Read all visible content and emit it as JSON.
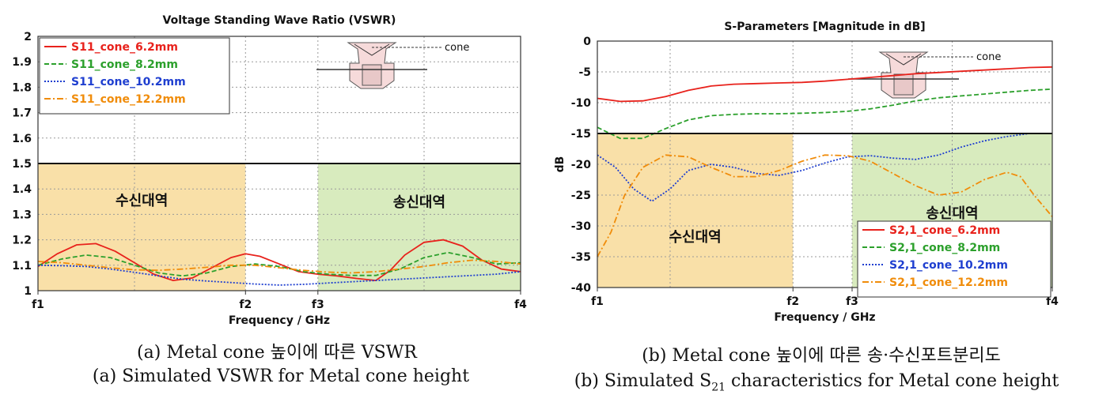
{
  "captions": {
    "a_ko": "(a) Metal cone 높이에 따른 VSWR",
    "a_en": "(a) Simulated VSWR for Metal cone height",
    "b_ko": "(b) Metal cone 높이에 따른 송·수신포트분리도",
    "b_en_pre": "(b) Simulated S",
    "b_en_sub": "21",
    "b_en_post": " characteristics for Metal cone height"
  },
  "chart_data": [
    {
      "type": "line",
      "title": "Voltage Standing Wave Ratio (VSWR)",
      "xlabel": "Frequency / GHz",
      "ylabel": "",
      "x_ticks": [
        "f1",
        "f2",
        "f3",
        "f4"
      ],
      "x_tick_positions": [
        0,
        0.43,
        0.58,
        1.0
      ],
      "xlim": [
        0,
        1
      ],
      "ylim": [
        1,
        2
      ],
      "y_ticks": [
        1,
        1.1,
        1.2,
        1.3,
        1.4,
        1.5,
        1.6,
        1.7,
        1.8,
        1.9,
        2
      ],
      "y_tick_labels": [
        "1",
        "1.1",
        "1.2",
        "1.3",
        "1.4",
        "1.5",
        "1.6",
        "1.7",
        "1.8",
        "1.9",
        "2"
      ],
      "grid": true,
      "legend_position": "top-left",
      "reference_line": 1.5,
      "bands": [
        {
          "label": "수신대역",
          "x0": 0,
          "x1": 0.43,
          "color": "#f9e0a8"
        },
        {
          "label": "송신대역",
          "x0": 0.58,
          "x1": 1.0,
          "color": "#d8ebbe"
        }
      ],
      "inset_label": "cone",
      "series": [
        {
          "name": "S11_cone_6.2mm",
          "color": "#e8221c",
          "dash": "solid",
          "x": [
            0,
            0.04,
            0.08,
            0.12,
            0.16,
            0.2,
            0.24,
            0.28,
            0.32,
            0.36,
            0.4,
            0.43,
            0.46,
            0.5,
            0.54,
            0.58,
            0.62,
            0.66,
            0.7,
            0.73,
            0.76,
            0.8,
            0.84,
            0.88,
            0.92,
            0.96,
            1.0
          ],
          "y": [
            1.095,
            1.145,
            1.18,
            1.185,
            1.155,
            1.11,
            1.065,
            1.04,
            1.05,
            1.09,
            1.13,
            1.145,
            1.135,
            1.105,
            1.075,
            1.065,
            1.058,
            1.048,
            1.04,
            1.08,
            1.14,
            1.19,
            1.2,
            1.175,
            1.12,
            1.085,
            1.075
          ]
        },
        {
          "name": "S11_cone_8.2mm",
          "color": "#2ca02c",
          "dash": "6,3",
          "x": [
            0,
            0.05,
            0.1,
            0.15,
            0.2,
            0.25,
            0.3,
            0.35,
            0.4,
            0.45,
            0.5,
            0.55,
            0.6,
            0.65,
            0.7,
            0.75,
            0.8,
            0.85,
            0.9,
            0.95,
            1.0
          ],
          "y": [
            1.1,
            1.125,
            1.14,
            1.13,
            1.1,
            1.07,
            1.058,
            1.07,
            1.095,
            1.105,
            1.095,
            1.075,
            1.065,
            1.06,
            1.06,
            1.085,
            1.13,
            1.15,
            1.13,
            1.105,
            1.11
          ]
        },
        {
          "name": "S11_cone_10.2mm",
          "color": "#1f3fd0",
          "dash": "2,2",
          "x": [
            0,
            0.05,
            0.1,
            0.15,
            0.2,
            0.25,
            0.3,
            0.35,
            0.4,
            0.45,
            0.5,
            0.55,
            0.6,
            0.65,
            0.7,
            0.75,
            0.8,
            0.85,
            0.9,
            0.95,
            1.0
          ],
          "y": [
            1.1,
            1.098,
            1.095,
            1.085,
            1.072,
            1.058,
            1.045,
            1.038,
            1.032,
            1.026,
            1.022,
            1.025,
            1.03,
            1.035,
            1.04,
            1.045,
            1.05,
            1.055,
            1.06,
            1.065,
            1.075
          ]
        },
        {
          "name": "S11_cone_12.2mm",
          "color": "#f08c0a",
          "dash": "8,3,2,3",
          "x": [
            0,
            0.05,
            0.1,
            0.15,
            0.2,
            0.25,
            0.3,
            0.35,
            0.4,
            0.45,
            0.5,
            0.55,
            0.6,
            0.65,
            0.7,
            0.75,
            0.8,
            0.85,
            0.9,
            0.95,
            1.0
          ],
          "y": [
            1.115,
            1.11,
            1.1,
            1.09,
            1.082,
            1.08,
            1.085,
            1.092,
            1.1,
            1.1,
            1.09,
            1.08,
            1.073,
            1.07,
            1.075,
            1.085,
            1.095,
            1.11,
            1.12,
            1.115,
            1.105
          ]
        }
      ]
    },
    {
      "type": "line",
      "title": "S-Parameters [Magnitude in dB]",
      "xlabel": "Frequency / GHz",
      "ylabel": "dB",
      "x_ticks": [
        "f1",
        "f2",
        "f3",
        "f4"
      ],
      "x_tick_positions": [
        0,
        0.43,
        0.56,
        1.0
      ],
      "xlim": [
        0,
        1
      ],
      "ylim": [
        -40,
        0
      ],
      "y_ticks": [
        0,
        -5,
        -10,
        -15,
        -20,
        -25,
        -30,
        -35,
        -40
      ],
      "y_tick_labels": [
        "0",
        "-5",
        "-10",
        "-15",
        "-20",
        "-25",
        "-30",
        "-35",
        "-40"
      ],
      "grid": true,
      "legend_position": "bottom-right",
      "reference_line": -15,
      "bands": [
        {
          "label": "수신대역",
          "x0": 0,
          "x1": 0.43,
          "color": "#f9e0a8"
        },
        {
          "label": "송신대역",
          "x0": 0.56,
          "x1": 1.0,
          "color": "#d8ebbe"
        }
      ],
      "inset_label": "cone",
      "series": [
        {
          "name": "S2,1_cone_6.2mm",
          "color": "#e8221c",
          "dash": "solid",
          "x": [
            0,
            0.05,
            0.1,
            0.15,
            0.2,
            0.25,
            0.3,
            0.35,
            0.4,
            0.45,
            0.5,
            0.55,
            0.6,
            0.65,
            0.7,
            0.75,
            0.8,
            0.85,
            0.9,
            0.95,
            1.0
          ],
          "y": [
            -9.3,
            -9.8,
            -9.7,
            -9.0,
            -8.0,
            -7.3,
            -7.0,
            -6.9,
            -6.8,
            -6.7,
            -6.5,
            -6.2,
            -5.9,
            -5.6,
            -5.3,
            -5.1,
            -4.9,
            -4.7,
            -4.5,
            -4.3,
            -4.2
          ]
        },
        {
          "name": "S2,1_cone_8.2mm",
          "color": "#2ca02c",
          "dash": "6,3",
          "x": [
            0,
            0.05,
            0.1,
            0.15,
            0.2,
            0.25,
            0.3,
            0.35,
            0.4,
            0.45,
            0.5,
            0.55,
            0.6,
            0.65,
            0.7,
            0.75,
            0.8,
            0.85,
            0.9,
            0.95,
            1.0
          ],
          "y": [
            -14.0,
            -15.8,
            -15.8,
            -14.2,
            -12.8,
            -12.1,
            -11.9,
            -11.8,
            -11.8,
            -11.7,
            -11.6,
            -11.4,
            -11.0,
            -10.4,
            -9.7,
            -9.2,
            -8.9,
            -8.6,
            -8.3,
            -8.0,
            -7.8
          ]
        },
        {
          "name": "S2,1_cone_10.2mm",
          "color": "#1f3fd0",
          "dash": "2,2",
          "x": [
            0,
            0.04,
            0.08,
            0.12,
            0.16,
            0.2,
            0.25,
            0.3,
            0.35,
            0.4,
            0.45,
            0.5,
            0.55,
            0.6,
            0.65,
            0.7,
            0.75,
            0.8,
            0.85,
            0.9,
            0.95,
            1.0
          ],
          "y": [
            -18.5,
            -20.5,
            -24.0,
            -26.0,
            -24.0,
            -21.0,
            -20.0,
            -20.5,
            -21.5,
            -21.8,
            -21.0,
            -19.8,
            -18.8,
            -18.6,
            -19.0,
            -19.2,
            -18.5,
            -17.2,
            -16.2,
            -15.5,
            -15.0,
            -15.0
          ]
        },
        {
          "name": "S2,1_cone_12.2mm",
          "color": "#f08c0a",
          "dash": "8,3,2,3",
          "x": [
            0,
            0.03,
            0.06,
            0.1,
            0.15,
            0.2,
            0.25,
            0.3,
            0.35,
            0.4,
            0.45,
            0.5,
            0.55,
            0.6,
            0.65,
            0.7,
            0.75,
            0.8,
            0.85,
            0.9,
            0.93,
            0.96,
            1.0
          ],
          "y": [
            -35.0,
            -31.0,
            -25.0,
            -20.5,
            -18.5,
            -18.8,
            -20.5,
            -22.0,
            -22.0,
            -21.0,
            -19.5,
            -18.5,
            -18.6,
            -19.5,
            -21.5,
            -23.5,
            -25.0,
            -24.5,
            -22.5,
            -21.3,
            -22.0,
            -25.0,
            -28.5
          ]
        }
      ]
    }
  ]
}
